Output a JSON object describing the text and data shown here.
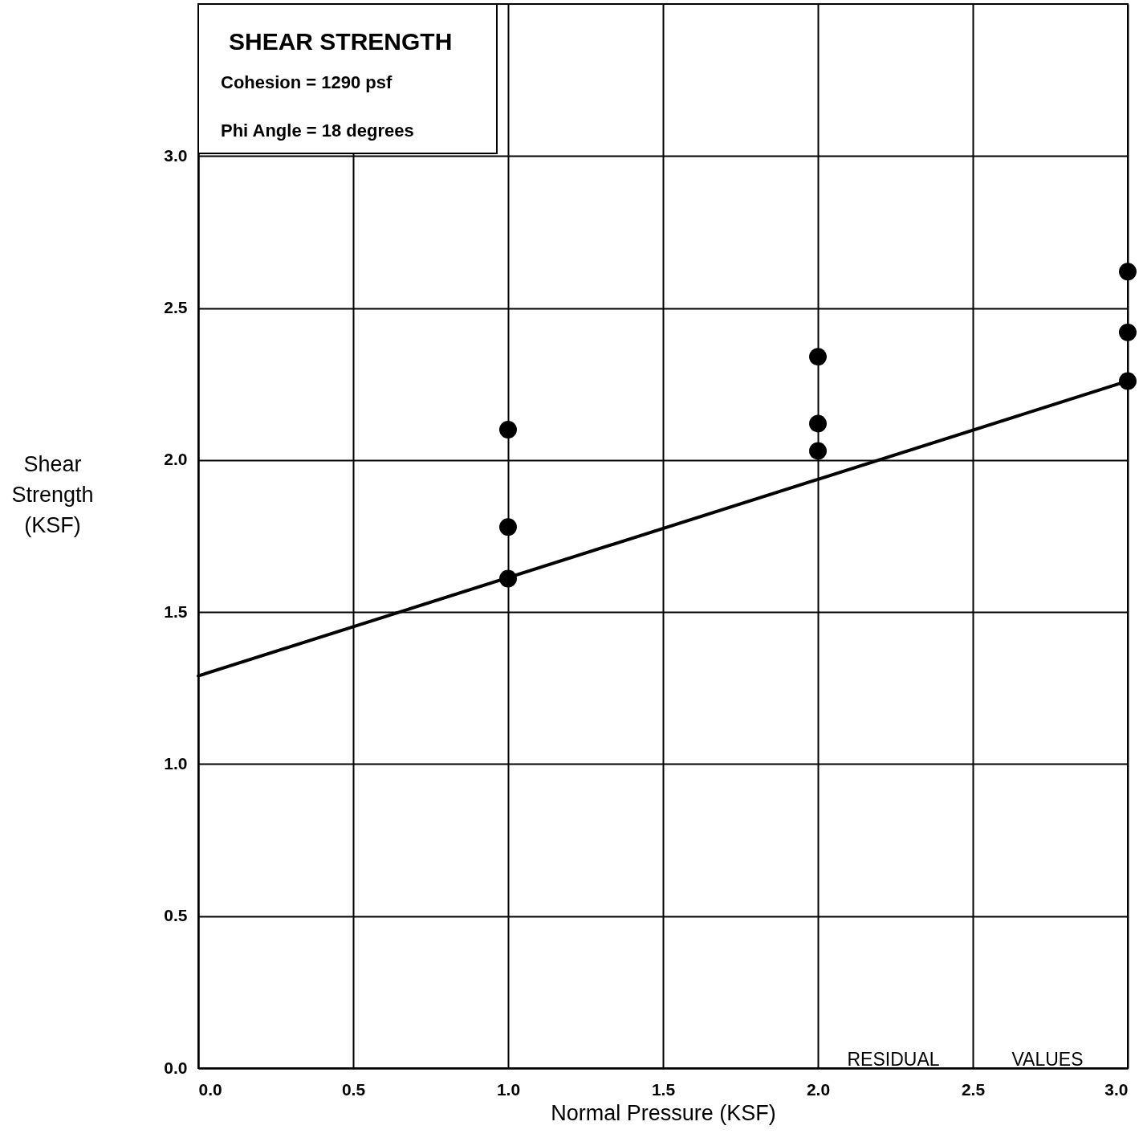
{
  "chart_data": {
    "type": "scatter",
    "title": "SHEAR STRENGTH",
    "xlabel": "Normal Pressure (KSF)",
    "ylabel": "Shear Strength (KSF)",
    "annotations": [
      "Cohesion = 1290 psf",
      "Phi Angle = 18 degrees",
      "RESIDUAL",
      "VALUES"
    ],
    "xlim": [
      0,
      3.0
    ],
    "ylim": [
      0,
      3.5
    ],
    "xticks": [
      {
        "value": 0,
        "label": "0.0"
      },
      {
        "value": 0.5,
        "label": "0.5"
      },
      {
        "value": 1,
        "label": "1.0"
      },
      {
        "value": 1.5,
        "label": "1.5"
      },
      {
        "value": 2,
        "label": "2.0"
      },
      {
        "value": 2.5,
        "label": "2.5"
      },
      {
        "value": 3,
        "label": "3.0"
      }
    ],
    "yticks": [
      {
        "value": 0,
        "label": "0.0"
      },
      {
        "value": 0.5,
        "label": "0.5"
      },
      {
        "value": 1,
        "label": "1.0"
      },
      {
        "value": 1.5,
        "label": "1.5"
      },
      {
        "value": 2,
        "label": "2.0"
      },
      {
        "value": 2.5,
        "label": "2.5"
      },
      {
        "value": 3,
        "label": "3.0"
      }
    ],
    "grid": true,
    "series": [
      {
        "marker": "circle",
        "color": "#000000",
        "x": [
          1,
          1,
          1,
          2,
          2,
          2,
          3,
          3,
          3
        ],
        "values": [
          2.1,
          1.78,
          1.61,
          2.34,
          2.12,
          2.03,
          2.62,
          2.42,
          2.26
        ]
      },
      {
        "type": "line",
        "color": "#000000",
        "x": [
          0,
          3
        ],
        "values": [
          1.29,
          2.26
        ],
        "line_style": "solid"
      }
    ]
  }
}
